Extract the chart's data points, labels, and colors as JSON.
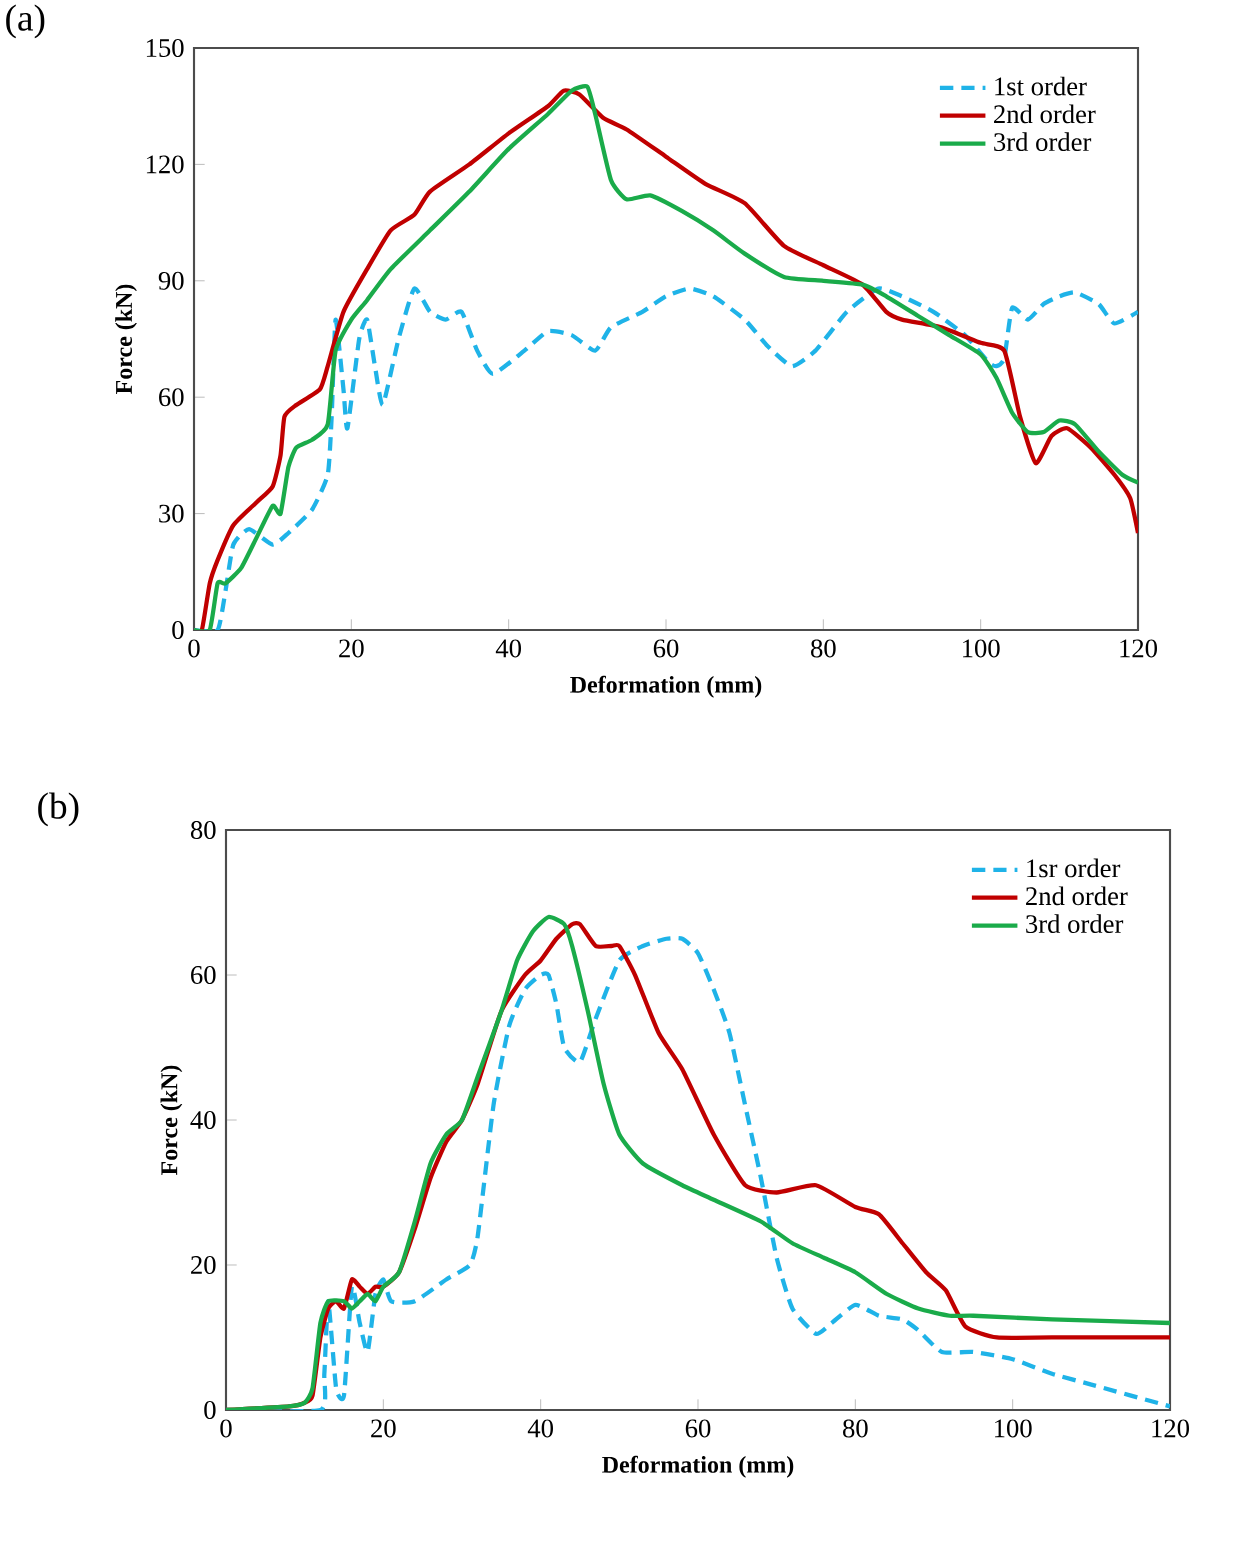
{
  "chart_data": [
    {
      "type": "line",
      "xlabel": "Deformation  (mm)",
      "ylabel": "Force (kN)",
      "annotations": [
        "(a)"
      ],
      "xlim": [
        0,
        120
      ],
      "ylim": [
        0,
        150
      ],
      "xticks": [
        0,
        20,
        40,
        60,
        80,
        100,
        120
      ],
      "yticks": [
        0,
        30,
        60,
        90,
        120,
        150
      ],
      "legend": "top right",
      "marker": "none",
      "series": [
        {
          "name": "1st order",
          "color": "#1fb3e8",
          "line_style": "dashed",
          "x": [
            0,
            3,
            4,
            5,
            7,
            10,
            12,
            15,
            17,
            17.5,
            18,
            19,
            19.5,
            21,
            22,
            23,
            24,
            26,
            28,
            30,
            32,
            34,
            36,
            38,
            42,
            45,
            48,
            51,
            53,
            57,
            60,
            63,
            66,
            70,
            73,
            76,
            79,
            83,
            87,
            90,
            94,
            98,
            101,
            102,
            103,
            104,
            106,
            108,
            110,
            112,
            115,
            117,
            120
          ],
          "values": [
            0,
            0,
            10,
            22,
            26,
            22,
            25,
            31,
            40,
            55,
            80,
            62,
            52,
            75,
            80,
            68,
            58,
            75,
            88,
            82,
            80,
            82,
            72,
            66,
            72,
            77,
            76,
            72,
            78,
            82,
            86,
            88,
            86,
            80,
            73,
            68,
            72,
            82,
            88,
            86,
            82,
            76,
            69,
            68,
            70,
            83,
            80,
            84,
            86,
            87,
            84,
            79,
            82
          ]
        },
        {
          "name": "2nd order",
          "color": "#c00000",
          "line_style": "solid",
          "x": [
            0,
            1,
            2,
            3,
            5,
            8,
            10,
            11,
            11.5,
            13,
            16,
            17,
            19,
            22,
            25,
            28,
            30,
            35,
            40,
            45,
            47,
            49,
            52,
            55,
            60,
            65,
            70,
            75,
            80,
            85,
            88,
            90,
            95,
            100,
            103,
            105,
            107,
            109,
            111,
            114,
            117,
            119,
            120
          ],
          "values": [
            0,
            0,
            12,
            18,
            27,
            33,
            37,
            45,
            55,
            58,
            62,
            68,
            82,
            93,
            103,
            107,
            113,
            120,
            128,
            135,
            139,
            138,
            132,
            129,
            122,
            115,
            110,
            99,
            94,
            89,
            82,
            80,
            78,
            74,
            72,
            55,
            43,
            50,
            52,
            47,
            40,
            34,
            25
          ]
        },
        {
          "name": "3rd order",
          "color": "#1aab4a",
          "line_style": "solid",
          "x": [
            0,
            2,
            3,
            4,
            6,
            8,
            10,
            11,
            12,
            13,
            15,
            17,
            18,
            20,
            22,
            25,
            30,
            35,
            40,
            45,
            48,
            50,
            51,
            53,
            55,
            58,
            62,
            66,
            70,
            75,
            80,
            85,
            88,
            92,
            96,
            100,
            102,
            104,
            106,
            108,
            110,
            112,
            115,
            118,
            120
          ],
          "values": [
            0,
            0,
            12,
            12,
            16,
            24,
            32,
            30,
            42,
            47,
            49,
            53,
            72,
            80,
            85,
            93,
            103,
            113,
            124,
            133,
            139,
            140,
            133,
            116,
            111,
            112,
            108,
            103,
            97,
            91,
            90,
            89,
            86,
            81,
            76,
            71,
            65,
            56,
            51,
            51,
            54,
            53,
            46,
            40,
            38
          ]
        }
      ]
    },
    {
      "type": "line",
      "xlabel": "Deformation  (mm)",
      "ylabel": "Force (kN)",
      "annotations": [
        "(b)"
      ],
      "xlim": [
        0,
        120
      ],
      "ylim": [
        0,
        80
      ],
      "xticks": [
        0,
        20,
        40,
        60,
        80,
        100,
        120
      ],
      "yticks": [
        0,
        20,
        40,
        60,
        80
      ],
      "legend": "top right",
      "marker": "none",
      "series": [
        {
          "name": "1sr order",
          "color": "#1fb3e8",
          "line_style": "dashed",
          "x": [
            0,
            12,
            12.5,
            13,
            14,
            15,
            16,
            17,
            18,
            19,
            20,
            21,
            24,
            28,
            31,
            32,
            34,
            36,
            38,
            40,
            41,
            42,
            43,
            45,
            47,
            50,
            53,
            56,
            58,
            60,
            62,
            64,
            66,
            68,
            70,
            72,
            75,
            77,
            80,
            83,
            86,
            88,
            91,
            95,
            100,
            105,
            110,
            120
          ],
          "values": [
            0,
            0,
            5,
            15,
            3,
            2,
            17,
            12,
            8,
            16,
            18,
            15,
            15,
            18,
            20,
            24,
            42,
            53,
            58,
            60,
            60,
            56,
            50,
            48,
            54,
            62,
            64,
            65,
            65,
            63,
            58,
            52,
            42,
            32,
            21,
            14,
            10.5,
            12,
            14.5,
            13,
            12.5,
            11,
            8,
            8,
            7,
            5,
            3.5,
            0.5
          ]
        },
        {
          "name": "2nd order",
          "color": "#c00000",
          "line_style": "solid",
          "x": [
            0,
            8,
            10,
            11,
            12,
            13,
            14,
            15,
            16,
            17,
            18,
            19,
            20,
            22,
            24,
            26,
            28,
            30,
            32,
            35,
            38,
            40,
            42,
            44,
            45,
            47,
            49,
            50,
            52,
            55,
            58,
            62,
            66,
            70,
            75,
            80,
            83,
            86,
            89,
            91.5,
            94,
            98,
            105,
            120
          ],
          "values": [
            0,
            0.5,
            1,
            2,
            10,
            14,
            15,
            14,
            18,
            17,
            16,
            17,
            17,
            19,
            25,
            32,
            37,
            40,
            45,
            55,
            60,
            62,
            65,
            67,
            67,
            64,
            64,
            64,
            60,
            52,
            47,
            38,
            31,
            30,
            31,
            28,
            27,
            23,
            19,
            16.5,
            11.5,
            10,
            10,
            10
          ]
        },
        {
          "name": "3rd order",
          "color": "#1aab4a",
          "line_style": "solid",
          "x": [
            0,
            8,
            10,
            11,
            12,
            13,
            15,
            16,
            17,
            18,
            19,
            20,
            22,
            24,
            26,
            28,
            30,
            32,
            35,
            37,
            39,
            41,
            43,
            44,
            46,
            48,
            50,
            53,
            58,
            62,
            68,
            72,
            76,
            80,
            84,
            88,
            92,
            95,
            105,
            120
          ],
          "values": [
            0,
            0.5,
            1,
            3,
            12,
            15,
            15,
            14,
            15,
            16,
            15,
            17,
            19,
            26,
            34,
            38,
            40,
            46,
            55,
            62,
            66,
            68,
            67,
            64,
            55,
            45,
            38,
            34,
            31,
            29,
            26,
            23,
            21,
            19,
            16,
            14,
            13,
            13,
            12.5,
            12
          ]
        }
      ]
    }
  ]
}
